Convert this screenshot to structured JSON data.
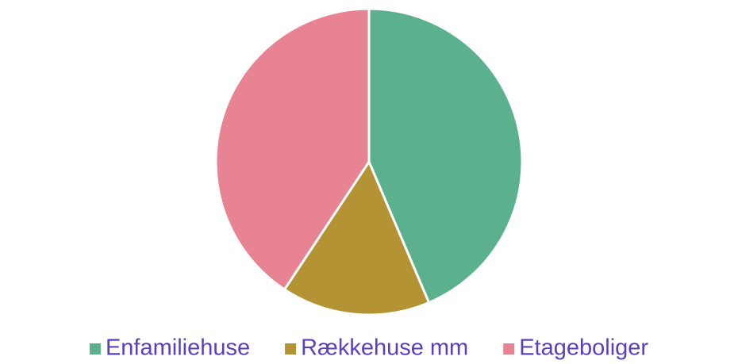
{
  "chart_data": {
    "type": "pie",
    "categories": [
      "Enfamiliehuse",
      "Rækkehuse mm",
      "Etageboliger"
    ],
    "values": [
      43.6,
      15.7,
      40.7
    ],
    "colors": [
      "#5bb08e",
      "#b39334",
      "#e88393"
    ],
    "legend": "bottom"
  }
}
